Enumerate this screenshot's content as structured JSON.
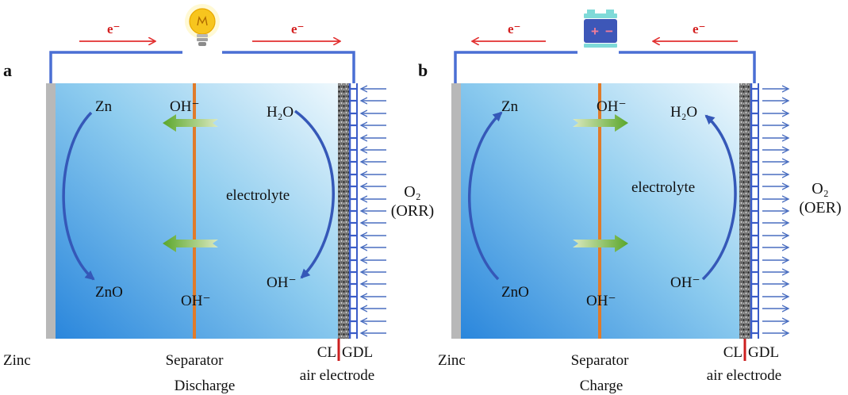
{
  "colors": {
    "wire": "#4a6fd4",
    "electron_arrow": "#e23030",
    "separator": "#e07b2a",
    "zinc_plate": "#b8b8b8",
    "gdl_blue": "#3a5cc8",
    "flow_arrow": "#4a6ec0",
    "cl_mark": "#cc1f1f",
    "electrolyte_light": "#e9f5fc",
    "electrolyte_dark": "#2f8fe0",
    "ion_arrow_green": "#7ab648"
  },
  "panels": [
    {
      "letter": "a",
      "source_icon": "light-bulb-icon",
      "electron_label": "e⁻",
      "electron_flow": "right",
      "oxygen_flow": "in",
      "ion_flow": "left",
      "labels": {
        "zn": "Zn",
        "zno": "ZnO",
        "oh_top": "OH⁻",
        "oh_bottom": "OH⁻",
        "h2o": "H₂O",
        "oh_right": "OH⁻",
        "electrolyte": "electrolyte",
        "o2": "O₂",
        "reaction": "(ORR)",
        "zinc": "Zinc",
        "separator": "Separator",
        "mode": "Discharge",
        "cl": "CL",
        "gdl": "GDL",
        "air_electrode": "air electrode"
      }
    },
    {
      "letter": "b",
      "source_icon": "battery-icon",
      "battery_plus": "+",
      "battery_minus": "−",
      "electron_label": "e⁻",
      "electron_flow": "left",
      "oxygen_flow": "out",
      "ion_flow": "right",
      "labels": {
        "zn": "Zn",
        "zno": "ZnO",
        "oh_top": "OH⁻",
        "oh_bottom": "OH⁻",
        "h2o": "H₂O",
        "oh_right": "OH⁻",
        "electrolyte": "electrolyte",
        "o2": "O₂",
        "reaction": "(OER)",
        "zinc": "Zinc",
        "separator": "Separator",
        "mode": "Charge",
        "cl": "CL",
        "gdl": "GDL",
        "air_electrode": "air electrode"
      }
    }
  ]
}
